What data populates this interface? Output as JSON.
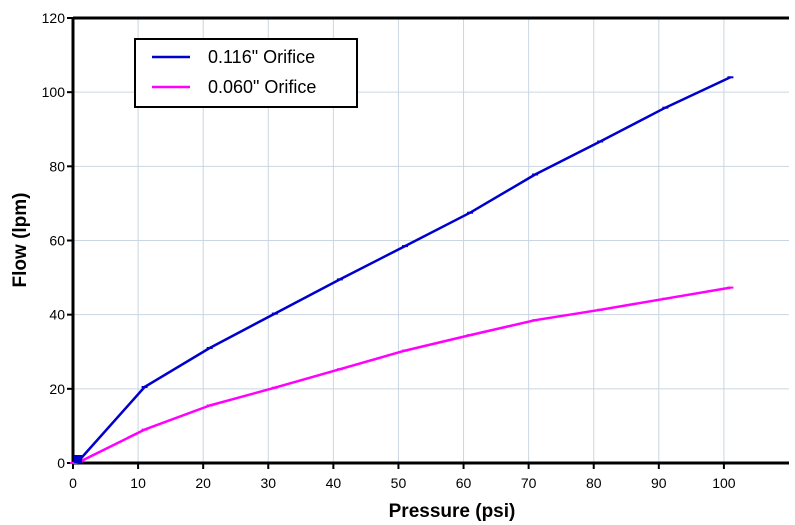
{
  "chart_data": {
    "type": "line",
    "title": "",
    "xlabel": "Pressure (psi)",
    "ylabel": "Flow (lpm)",
    "xlim": [
      0,
      110
    ],
    "ylim": [
      0,
      120
    ],
    "xticks": [
      0,
      10,
      20,
      30,
      40,
      50,
      60,
      70,
      80,
      90,
      100
    ],
    "yticks": [
      0,
      20,
      40,
      60,
      80,
      100,
      120
    ],
    "grid": true,
    "legend_position": "top-left",
    "series": [
      {
        "name": "0.116\" Orifice",
        "color": "#0000cc",
        "x": [
          0,
          1,
          11,
          21,
          31,
          41,
          51,
          61,
          71,
          81,
          91,
          101
        ],
        "y": [
          0,
          0.8,
          20.5,
          31,
          40.3,
          49.5,
          58.5,
          67.5,
          77.8,
          86.7,
          95.8,
          104
        ]
      },
      {
        "name": "0.060\" Orifice",
        "color": "#ff00ff",
        "x": [
          0,
          1,
          11,
          21,
          31,
          41,
          51,
          61,
          71,
          81,
          91,
          101
        ],
        "y": [
          0,
          0.3,
          9,
          15.5,
          20.3,
          25.3,
          30.3,
          34.5,
          38.5,
          41.3,
          44.3,
          47.3
        ]
      }
    ]
  }
}
